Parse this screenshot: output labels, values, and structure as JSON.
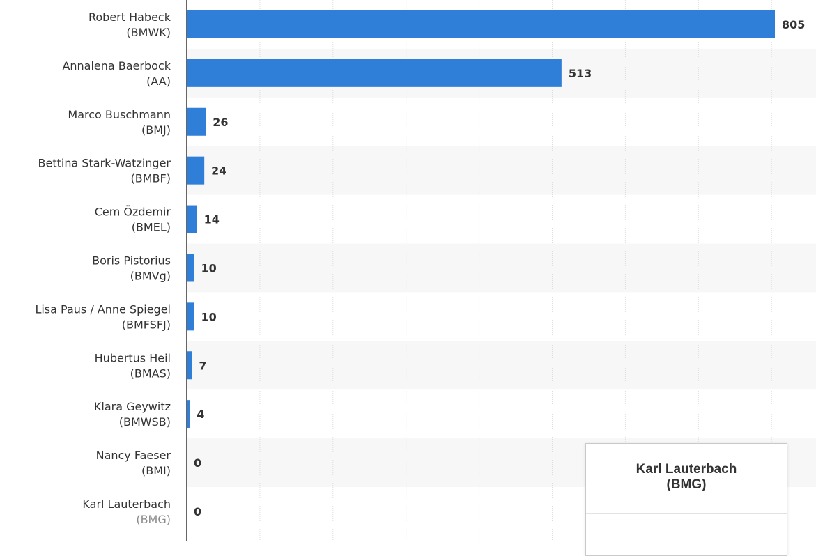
{
  "chart_data": {
    "type": "bar",
    "orientation": "horizontal",
    "categories": [
      {
        "name": "Robert Habeck",
        "ministry": "(BMWK)"
      },
      {
        "name": "Annalena Baerbock",
        "ministry": "(AA)"
      },
      {
        "name": "Marco Buschmann",
        "ministry": "(BMJ)"
      },
      {
        "name": "Bettina Stark-Watzinger",
        "ministry": "(BMBF)"
      },
      {
        "name": "Cem Özdemir",
        "ministry": "(BMEL)"
      },
      {
        "name": "Boris Pistorius",
        "ministry": "(BMVg)"
      },
      {
        "name": "Lisa Paus / Anne Spiegel",
        "ministry": "(BMFSFJ)"
      },
      {
        "name": "Hubertus Heil",
        "ministry": "(BMAS)"
      },
      {
        "name": "Klara Geywitz",
        "ministry": "(BMWSB)"
      },
      {
        "name": "Nancy Faeser",
        "ministry": "(BMI)"
      },
      {
        "name": "Karl Lauterbach",
        "ministry": "(BMG)"
      }
    ],
    "values": [
      805,
      513,
      26,
      24,
      14,
      10,
      10,
      7,
      4,
      0,
      0
    ],
    "xlim": [
      0,
      805
    ],
    "grid": true,
    "bar_color": "#2f7ed8",
    "highlighted_category": "Karl Lauterbach (BMG)"
  },
  "tooltip": {
    "title_line1": "Karl Lauterbach",
    "title_line2": "(BMG)"
  }
}
